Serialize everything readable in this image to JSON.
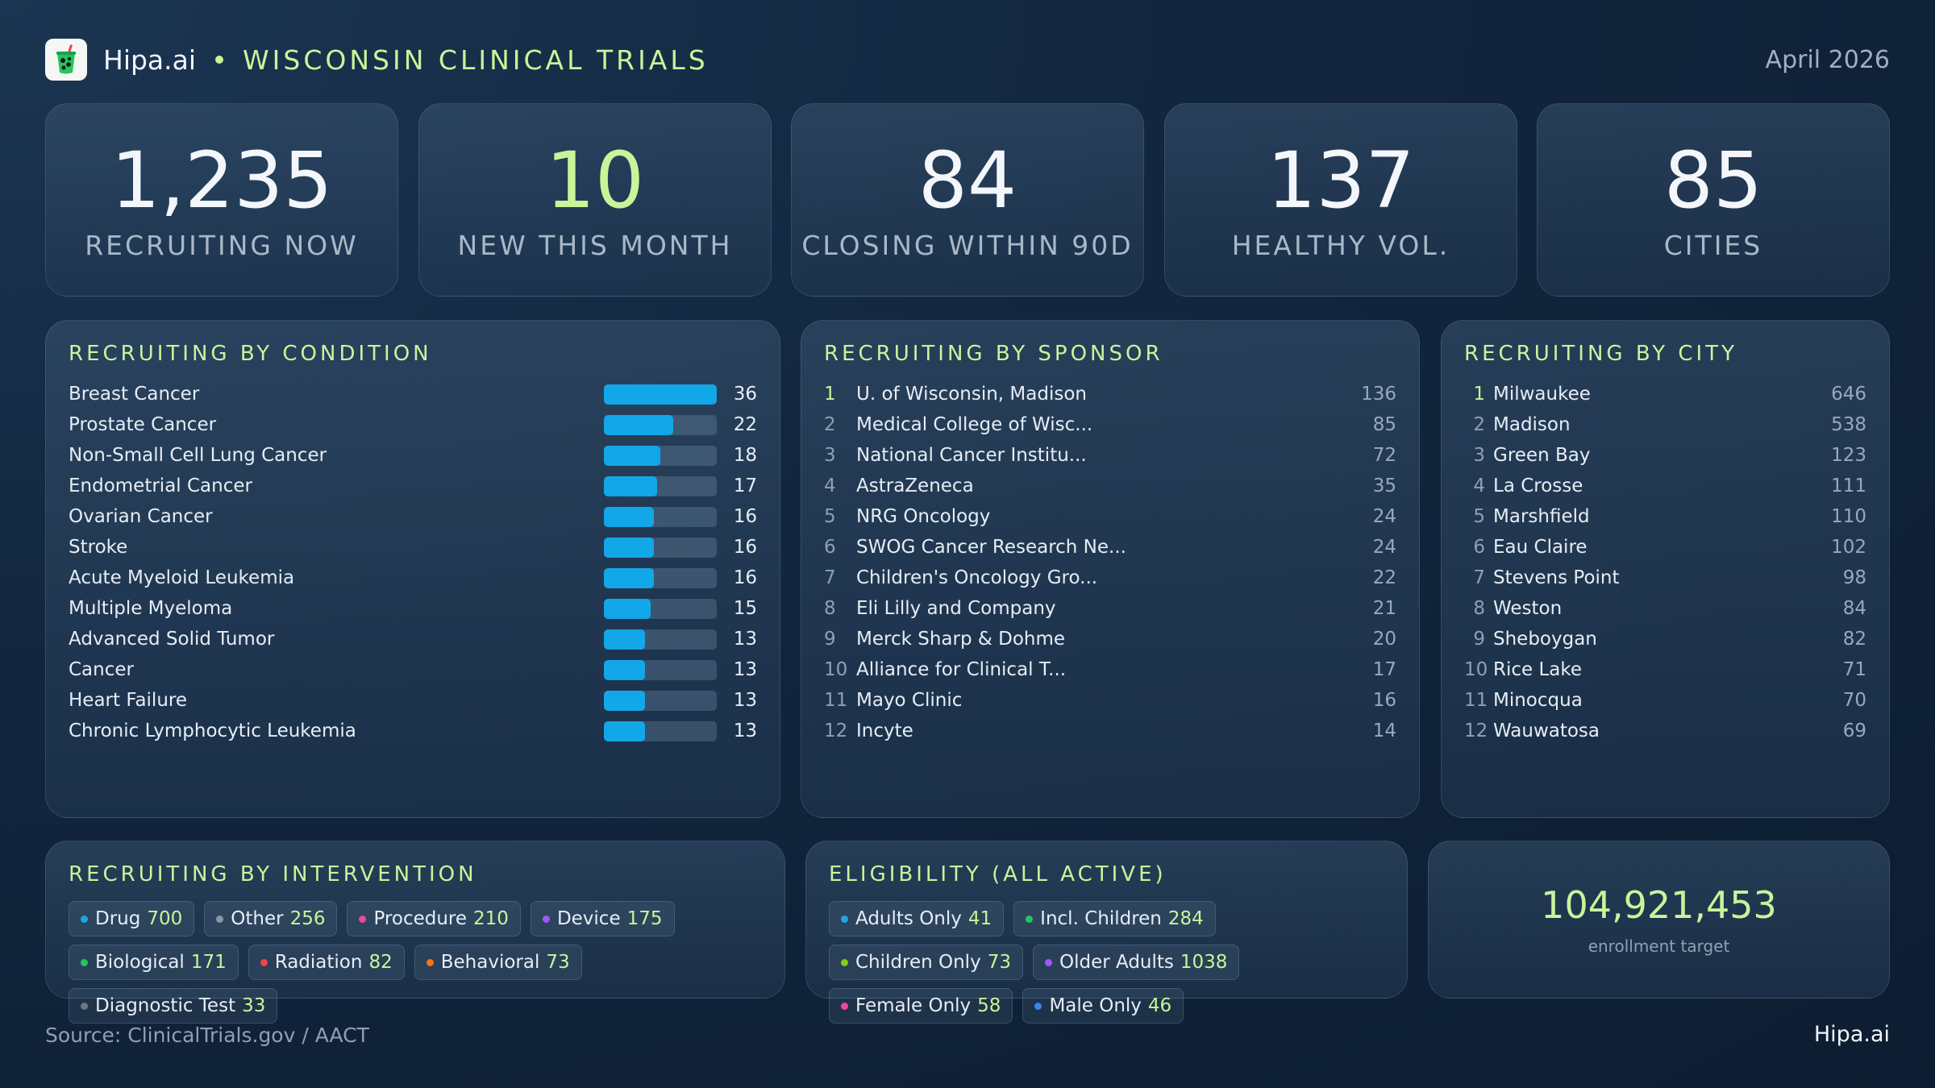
{
  "header": {
    "brand": "Hipa.ai",
    "title": "WISCONSIN CLINICAL TRIALS",
    "date": "April 2026",
    "logo_icon": "drink-cup-icon"
  },
  "stats": [
    {
      "value": "1,235",
      "label": "RECRUITING NOW"
    },
    {
      "value": "10",
      "label": "NEW THIS MONTH"
    },
    {
      "value": "84",
      "label": "CLOSING WITHIN 90D"
    },
    {
      "value": "137",
      "label": "HEALTHY VOL."
    },
    {
      "value": "85",
      "label": "CITIES"
    }
  ],
  "conditions": {
    "title": "RECRUITING BY CONDITION",
    "max": 36,
    "items": [
      {
        "name": "Breast Cancer",
        "value": 36
      },
      {
        "name": "Prostate Cancer",
        "value": 22
      },
      {
        "name": "Non-Small Cell Lung Cancer",
        "value": 18
      },
      {
        "name": "Endometrial Cancer",
        "value": 17
      },
      {
        "name": "Ovarian Cancer",
        "value": 16
      },
      {
        "name": "Stroke",
        "value": 16
      },
      {
        "name": "Acute Myeloid Leukemia",
        "value": 16
      },
      {
        "name": "Multiple Myeloma",
        "value": 15
      },
      {
        "name": "Advanced Solid Tumor",
        "value": 13
      },
      {
        "name": "Cancer",
        "value": 13
      },
      {
        "name": "Heart Failure",
        "value": 13
      },
      {
        "name": "Chronic Lymphocytic Leukemia",
        "value": 13
      }
    ]
  },
  "sponsors": {
    "title": "RECRUITING BY SPONSOR",
    "items": [
      {
        "rank": "1",
        "name": "U. of Wisconsin, Madison",
        "value": "136"
      },
      {
        "rank": "2",
        "name": "Medical College of Wisc...",
        "value": "85"
      },
      {
        "rank": "3",
        "name": "National Cancer Institu...",
        "value": "72"
      },
      {
        "rank": "4",
        "name": "AstraZeneca",
        "value": "35"
      },
      {
        "rank": "5",
        "name": "NRG Oncology",
        "value": "24"
      },
      {
        "rank": "6",
        "name": "SWOG Cancer Research Ne...",
        "value": "24"
      },
      {
        "rank": "7",
        "name": "Children's Oncology Gro...",
        "value": "22"
      },
      {
        "rank": "8",
        "name": "Eli Lilly and Company",
        "value": "21"
      },
      {
        "rank": "9",
        "name": "Merck Sharp & Dohme",
        "value": "20"
      },
      {
        "rank": "10",
        "name": "Alliance for Clinical T...",
        "value": "17"
      },
      {
        "rank": "11",
        "name": "Mayo Clinic",
        "value": "16"
      },
      {
        "rank": "12",
        "name": "Incyte",
        "value": "14"
      }
    ]
  },
  "cities": {
    "title": "RECRUITING BY CITY",
    "items": [
      {
        "rank": "1",
        "name": "Milwaukee",
        "value": "646"
      },
      {
        "rank": "2",
        "name": "Madison",
        "value": "538"
      },
      {
        "rank": "3",
        "name": "Green Bay",
        "value": "123"
      },
      {
        "rank": "4",
        "name": "La Crosse",
        "value": "111"
      },
      {
        "rank": "5",
        "name": "Marshfield",
        "value": "110"
      },
      {
        "rank": "6",
        "name": "Eau Claire",
        "value": "102"
      },
      {
        "rank": "7",
        "name": "Stevens Point",
        "value": "98"
      },
      {
        "rank": "8",
        "name": "Weston",
        "value": "84"
      },
      {
        "rank": "9",
        "name": "Sheboygan",
        "value": "82"
      },
      {
        "rank": "10",
        "name": "Rice Lake",
        "value": "71"
      },
      {
        "rank": "11",
        "name": "Minocqua",
        "value": "70"
      },
      {
        "rank": "12",
        "name": "Wauwatosa",
        "value": "69"
      }
    ]
  },
  "interventions": {
    "title": "RECRUITING BY INTERVENTION",
    "items": [
      {
        "label": "Drug",
        "value": "700",
        "color": "#1ea7e8"
      },
      {
        "label": "Other",
        "value": "256",
        "color": "#8a97a6"
      },
      {
        "label": "Procedure",
        "value": "210",
        "color": "#ec4899"
      },
      {
        "label": "Device",
        "value": "175",
        "color": "#a855f7"
      },
      {
        "label": "Biological",
        "value": "171",
        "color": "#22c55e"
      },
      {
        "label": "Radiation",
        "value": "82",
        "color": "#ef4444"
      },
      {
        "label": "Behavioral",
        "value": "73",
        "color": "#f97316"
      },
      {
        "label": "Diagnostic Test",
        "value": "33",
        "color": "#6b7785"
      }
    ]
  },
  "eligibility": {
    "title": "ELIGIBILITY (ALL ACTIVE)",
    "items": [
      {
        "label": "Adults Only",
        "value": "41",
        "color": "#1ea7e8"
      },
      {
        "label": "Incl. Children",
        "value": "284",
        "color": "#22c55e"
      },
      {
        "label": "Children Only",
        "value": "73",
        "color": "#84cc16"
      },
      {
        "label": "Older Adults",
        "value": "1038",
        "color": "#a855f7"
      },
      {
        "label": "Female Only",
        "value": "58",
        "color": "#ec4899"
      },
      {
        "label": "Male Only",
        "value": "46",
        "color": "#3b82f6"
      }
    ]
  },
  "target": {
    "value": "104,921,453",
    "label": "enrollment target"
  },
  "footer": {
    "source": "Source: ClinicalTrials.gov / AACT",
    "brand": "Hipa.ai"
  }
}
